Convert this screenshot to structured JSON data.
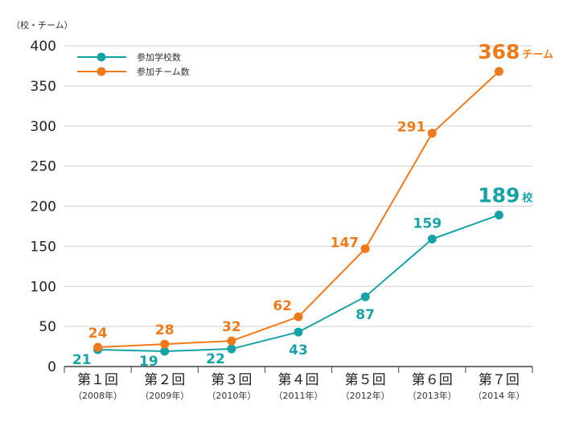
{
  "chart_data": {
    "type": "line",
    "unit_label": "（校・チーム）",
    "categories": [
      "第１回",
      "第２回",
      "第３回",
      "第４回",
      "第５回",
      "第６回",
      "第７回"
    ],
    "category_sublabels": [
      "（2008年）",
      "（2009年）",
      "（2010年）",
      "（2011年）",
      "（2012年）",
      "（2013年）",
      "（2014 年）"
    ],
    "ylim": [
      0,
      400
    ],
    "yticks": [
      0,
      50,
      100,
      150,
      200,
      250,
      300,
      350,
      400
    ],
    "grid": true,
    "legend_position": "top-left",
    "series": [
      {
        "name": "参加学校数",
        "color": "#17a2a6",
        "values": [
          21,
          19,
          22,
          43,
          87,
          159,
          189
        ],
        "labels": [
          "21",
          "19",
          "22",
          "43",
          "87",
          "159",
          "189"
        ],
        "final_suffix": "校"
      },
      {
        "name": "参加チーム数",
        "color": "#ee7a1a",
        "values": [
          24,
          28,
          32,
          62,
          147,
          291,
          368
        ],
        "labels": [
          "24",
          "28",
          "32",
          "62",
          "147",
          "291",
          "368"
        ],
        "final_suffix": "チーム"
      }
    ]
  }
}
